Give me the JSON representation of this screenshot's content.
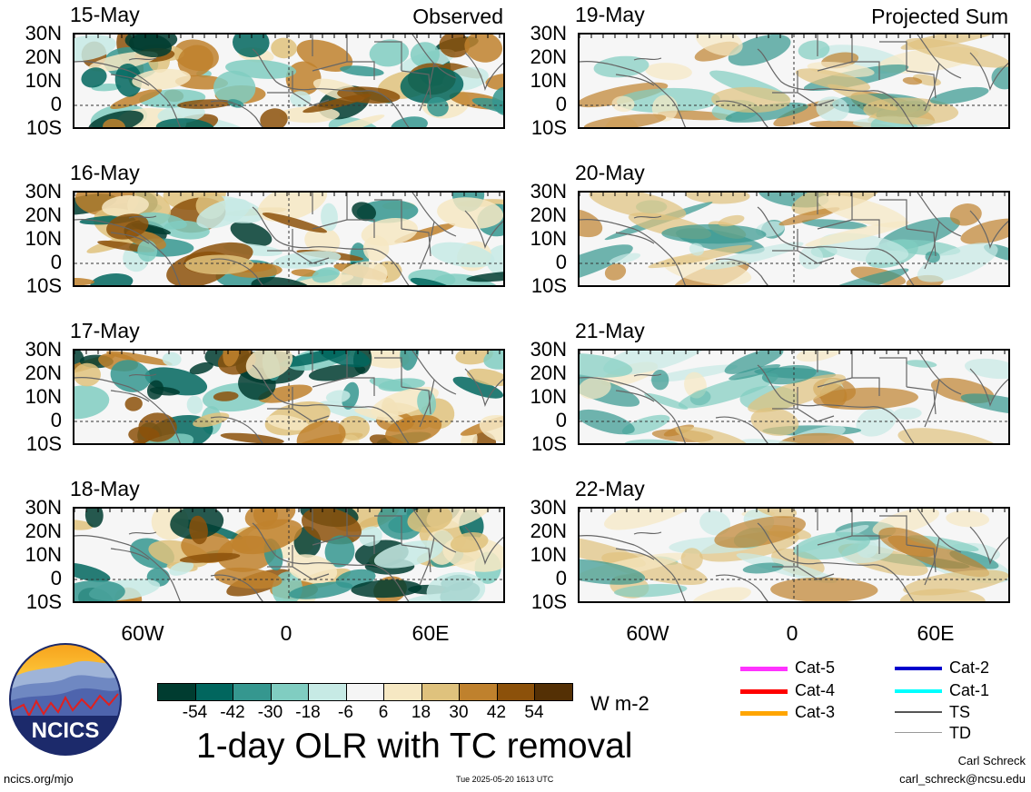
{
  "panels": [
    {
      "date": "15-May",
      "corner": "Observed",
      "side": "observed",
      "seed": 1
    },
    {
      "date": "16-May",
      "corner": "",
      "side": "observed",
      "seed": 2
    },
    {
      "date": "17-May",
      "corner": "",
      "side": "observed",
      "seed": 3
    },
    {
      "date": "18-May",
      "corner": "",
      "side": "observed",
      "seed": 4
    },
    {
      "date": "19-May",
      "corner": "Projected Sum",
      "side": "projected",
      "seed": 5
    },
    {
      "date": "20-May",
      "corner": "",
      "side": "projected",
      "seed": 6
    },
    {
      "date": "21-May",
      "corner": "",
      "side": "projected",
      "seed": 7
    },
    {
      "date": "22-May",
      "corner": "",
      "side": "projected",
      "seed": 8
    }
  ],
  "lat_labels": [
    "30N",
    "20N",
    "10N",
    "0",
    "10S"
  ],
  "lon_labels": [
    "60W",
    "0",
    "60E"
  ],
  "colorbar": {
    "colors": [
      "#003c30",
      "#01665e",
      "#35978f",
      "#80cdc1",
      "#c7eae5",
      "#f5f5f5",
      "#f6e8c3",
      "#dfc27d",
      "#bf812d",
      "#8c510a",
      "#543005"
    ],
    "ticks": [
      "-54",
      "-42",
      "-30",
      "-18",
      "-6",
      "6",
      "18",
      "30",
      "42",
      "54"
    ],
    "units": "W m-2"
  },
  "title": "1-day OLR with TC removal",
  "tc_legend": [
    {
      "label": "Cat-5",
      "color": "#ff33ff"
    },
    {
      "label": "Cat-4",
      "color": "#ff0000"
    },
    {
      "label": "Cat-3",
      "color": "#ffa500"
    },
    {
      "label": "Cat-2",
      "color": "#0000cc"
    },
    {
      "label": "Cat-1",
      "color": "#00ffff"
    },
    {
      "label": "TS",
      "color": "#555555"
    },
    {
      "label": "TD",
      "color": "#999999"
    }
  ],
  "logo": {
    "text": "NCICS"
  },
  "footer": {
    "left": "ncics.org/mjo",
    "center": "Tue 2025-05-20 1613 UTC",
    "author": "Carl Schreck",
    "email": "carl_schreck@ncsu.edu"
  }
}
